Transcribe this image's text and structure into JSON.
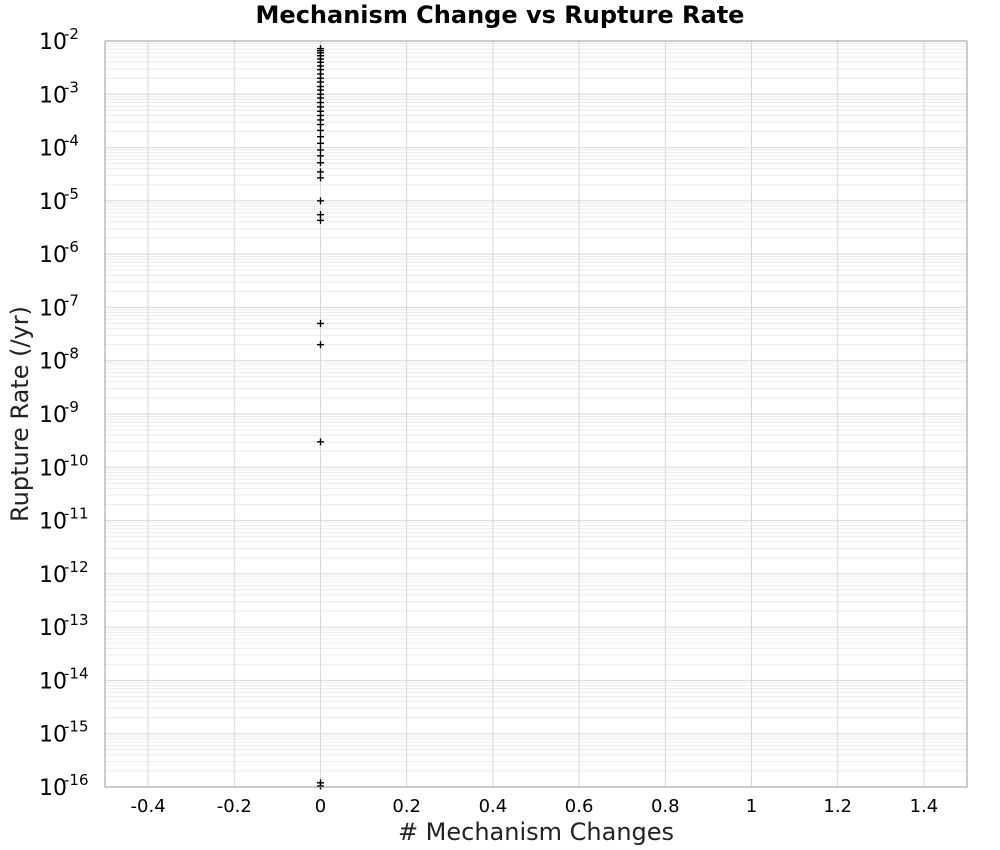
{
  "chart_data": {
    "type": "scatter",
    "title": "Mechanism Change vs Rupture Rate",
    "xlabel": "# Mechanism Changes",
    "ylabel": "Rupture Rate (/yr)",
    "xlim": [
      -0.5,
      1.5
    ],
    "ylim": [
      1e-16,
      0.01
    ],
    "yscale": "log",
    "grid": true,
    "legend": "none",
    "marker": "plus",
    "marker_color": "#000000",
    "x_ticks": [
      "-0.4",
      "-0.2",
      "0",
      "0.2",
      "0.4",
      "0.6",
      "0.8",
      "1",
      "1.2",
      "1.4"
    ],
    "y_ticks": [
      {
        "base": "10",
        "exp": "-2"
      },
      {
        "base": "10",
        "exp": "-3"
      },
      {
        "base": "10",
        "exp": "-4"
      },
      {
        "base": "10",
        "exp": "-5"
      },
      {
        "base": "10",
        "exp": "-6"
      },
      {
        "base": "10",
        "exp": "-7"
      },
      {
        "base": "10",
        "exp": "-8"
      },
      {
        "base": "10",
        "exp": "-9"
      },
      {
        "base": "10",
        "exp": "-10"
      },
      {
        "base": "10",
        "exp": "-11"
      },
      {
        "base": "10",
        "exp": "-12"
      },
      {
        "base": "10",
        "exp": "-13"
      },
      {
        "base": "10",
        "exp": "-14"
      },
      {
        "base": "10",
        "exp": "-15"
      },
      {
        "base": "10",
        "exp": "-16"
      }
    ],
    "points": [
      {
        "x": 0,
        "y": 0.0072
      },
      {
        "x": 0,
        "y": 0.0066
      },
      {
        "x": 0,
        "y": 0.006
      },
      {
        "x": 0,
        "y": 0.0053
      },
      {
        "x": 0,
        "y": 0.0046
      },
      {
        "x": 0,
        "y": 0.004
      },
      {
        "x": 0,
        "y": 0.0034
      },
      {
        "x": 0,
        "y": 0.0029
      },
      {
        "x": 0,
        "y": 0.0024
      },
      {
        "x": 0,
        "y": 0.002
      },
      {
        "x": 0,
        "y": 0.0017
      },
      {
        "x": 0,
        "y": 0.0014
      },
      {
        "x": 0,
        "y": 0.0012
      },
      {
        "x": 0,
        "y": 0.001
      },
      {
        "x": 0,
        "y": 0.00085
      },
      {
        "x": 0,
        "y": 0.0007
      },
      {
        "x": 0,
        "y": 0.00058
      },
      {
        "x": 0,
        "y": 0.00048
      },
      {
        "x": 0,
        "y": 0.0004
      },
      {
        "x": 0,
        "y": 0.00033
      },
      {
        "x": 0,
        "y": 0.00027
      },
      {
        "x": 0,
        "y": 0.00021
      },
      {
        "x": 0,
        "y": 0.00016
      },
      {
        "x": 0,
        "y": 0.00012
      },
      {
        "x": 0,
        "y": 9e-05
      },
      {
        "x": 0,
        "y": 7e-05
      },
      {
        "x": 0,
        "y": 5.2e-05
      },
      {
        "x": 0,
        "y": 3.5e-05
      },
      {
        "x": 0,
        "y": 2.7e-05
      },
      {
        "x": 0,
        "y": 1e-05
      },
      {
        "x": 0,
        "y": 5.5e-06
      },
      {
        "x": 0,
        "y": 4.3e-06
      },
      {
        "x": 0,
        "y": 5e-08
      },
      {
        "x": 0,
        "y": 2e-08
      },
      {
        "x": 0,
        "y": 3e-10
      },
      {
        "x": 0,
        "y": 1.2e-16
      },
      {
        "x": 0,
        "y": 1e-16
      }
    ]
  }
}
